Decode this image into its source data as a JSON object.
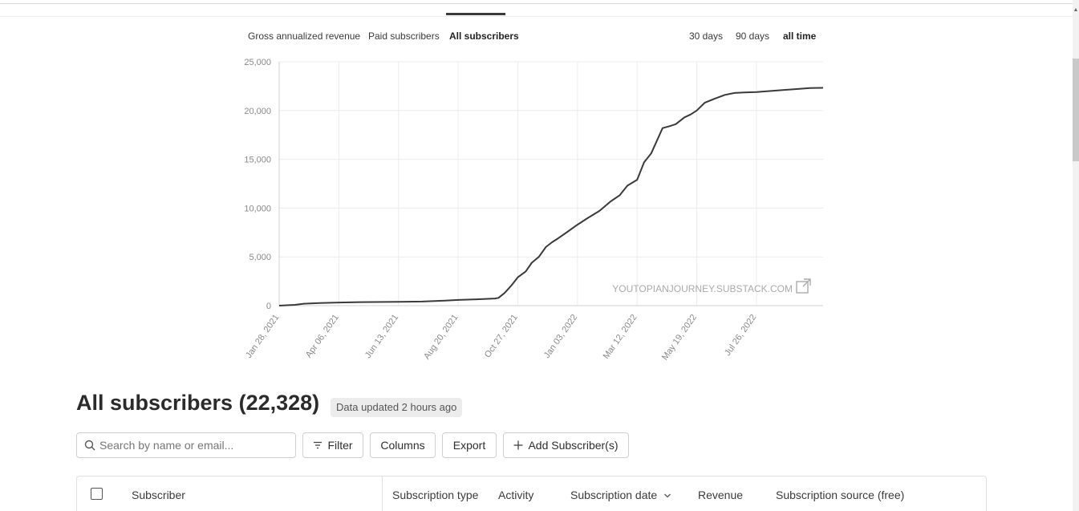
{
  "metric_tabs": [
    {
      "label": "Gross annualized revenue",
      "active": false
    },
    {
      "label": "Paid subscribers",
      "active": false
    },
    {
      "label": "All subscribers",
      "active": true
    }
  ],
  "range_tabs": [
    {
      "label": "30 days",
      "active": false
    },
    {
      "label": "90 days",
      "active": false
    },
    {
      "label": "all time",
      "active": true
    }
  ],
  "chart_data": {
    "type": "line",
    "title": "",
    "xlabel": "",
    "ylabel": "",
    "ylim": [
      0,
      25000
    ],
    "yticks": [
      0,
      5000,
      10000,
      15000,
      20000,
      25000
    ],
    "ytick_labels": [
      "0",
      "5,000",
      "10,000",
      "15,000",
      "20,000",
      "25,000"
    ],
    "xlim": [
      "2021-01-28",
      "2022-10-10"
    ],
    "xticks": [
      "2021-01-28",
      "2021-04-06",
      "2021-06-13",
      "2021-08-20",
      "2021-10-27",
      "2022-01-03",
      "2022-03-12",
      "2022-05-19",
      "2022-07-26"
    ],
    "xtick_labels": [
      "Jan 28, 2021",
      "Apr 06, 2021",
      "Jun 13, 2021",
      "Aug 20, 2021",
      "Oct 27, 2021",
      "Jan 03, 2022",
      "Mar 12, 2022",
      "May 19, 2022",
      "Jul 26, 2022"
    ],
    "grid": true,
    "line_color": "#3a3a3a",
    "watermark": "YOUTOPIANJOURNEY.SUBSTACK.COM",
    "series": [
      {
        "x": [
          "2021-01-28",
          "2021-02-15",
          "2021-02-25",
          "2021-03-15",
          "2021-04-06",
          "2021-05-01",
          "2021-06-13",
          "2021-07-10",
          "2021-08-05",
          "2021-08-20",
          "2021-09-10",
          "2021-10-01",
          "2021-10-05",
          "2021-10-12",
          "2021-10-20",
          "2021-10-27",
          "2021-11-05",
          "2021-11-12",
          "2021-11-20",
          "2021-11-28",
          "2021-12-05",
          "2021-12-12",
          "2021-12-20",
          "2022-01-03",
          "2022-01-15",
          "2022-01-28",
          "2022-02-10",
          "2022-02-20",
          "2022-03-01",
          "2022-03-12",
          "2022-03-20",
          "2022-03-28",
          "2022-04-10",
          "2022-04-18",
          "2022-04-25",
          "2022-05-05",
          "2022-05-12",
          "2022-05-19",
          "2022-05-28",
          "2022-06-08",
          "2022-06-20",
          "2022-07-01",
          "2022-07-12",
          "2022-07-26",
          "2022-08-10",
          "2022-08-25",
          "2022-09-10",
          "2022-09-25",
          "2022-10-10"
        ],
        "y": [
          0,
          80,
          200,
          260,
          320,
          360,
          390,
          420,
          520,
          580,
          650,
          730,
          800,
          1300,
          2100,
          2900,
          3500,
          4400,
          5000,
          6000,
          6500,
          6900,
          7400,
          8300,
          9000,
          9700,
          10700,
          11300,
          12300,
          12900,
          14700,
          15600,
          18200,
          18400,
          18600,
          19300,
          19600,
          20000,
          20800,
          21200,
          21600,
          21800,
          21850,
          21900,
          22000,
          22100,
          22200,
          22300,
          22330
        ]
      }
    ]
  },
  "section": {
    "title": "All subscribers (22,328)",
    "updated_badge": "Data updated 2 hours ago"
  },
  "toolbar": {
    "search_placeholder": "Search by name or email...",
    "filter_label": "Filter",
    "columns_label": "Columns",
    "export_label": "Export",
    "add_label": "Add Subscriber(s)"
  },
  "table": {
    "columns": [
      "Subscriber",
      "Subscription type",
      "Activity",
      "Subscription date",
      "Revenue",
      "Subscription source (free)"
    ]
  },
  "icons": {
    "search": "search-icon",
    "filter": "filter-icon",
    "add": "plus-icon",
    "external_link": "external-link-icon",
    "sort": "chevron-down-icon"
  }
}
